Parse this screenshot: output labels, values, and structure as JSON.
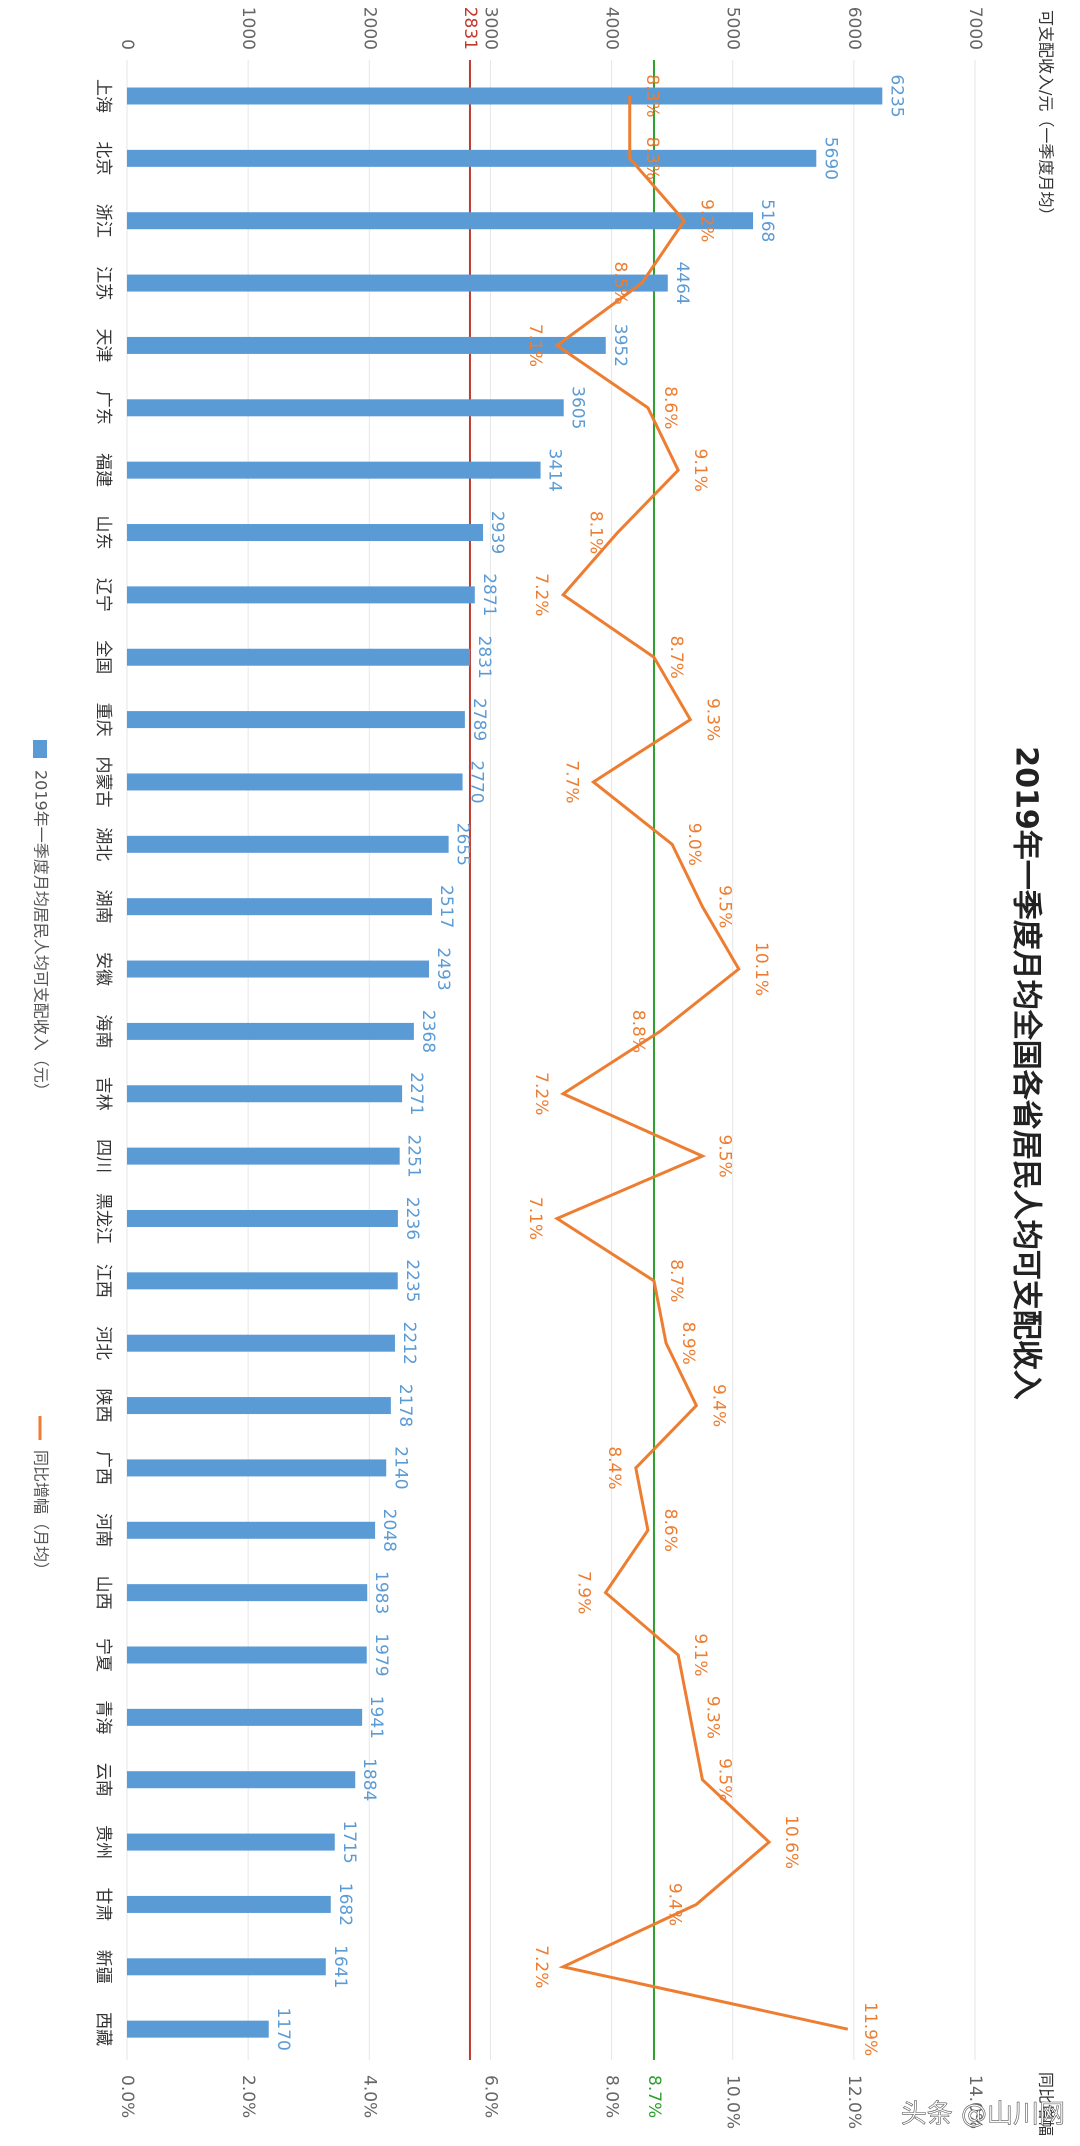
{
  "chart_data": {
    "type": "bar-line",
    "title": "2019年一季度月均全国各省居民人均可支配收入",
    "y_label": "可支配收入/元（一季度月均）",
    "y2_label": "同比增幅",
    "categories": [
      "上海",
      "北京",
      "浙江",
      "江苏",
      "天津",
      "广东",
      "福建",
      "山东",
      "辽宁",
      "全国",
      "重庆",
      "内蒙古",
      "湖北",
      "湖南",
      "安徽",
      "海南",
      "吉林",
      "四川",
      "黑龙江",
      "江西",
      "河北",
      "陕西",
      "广西",
      "河南",
      "山西",
      "宁夏",
      "青海",
      "云南",
      "贵州",
      "甘肃",
      "新疆",
      "西藏"
    ],
    "series": [
      {
        "name": "2019年一季度月均居民人均可支配收入（元）",
        "type": "bar",
        "color": "#5b9bd5",
        "values": [
          6235,
          5690,
          5168,
          4464,
          3952,
          3605,
          3414,
          2939,
          2871,
          2831,
          2789,
          2770,
          2655,
          2517,
          2493,
          2368,
          2271,
          2251,
          2236,
          2235,
          2212,
          2178,
          2140,
          2048,
          1983,
          1979,
          1941,
          1884,
          1715,
          1682,
          1641,
          1170
        ]
      },
      {
        "name": "同比增幅（月均）",
        "type": "line",
        "axis": "y2",
        "color": "#ed7d31",
        "values": [
          8.3,
          8.3,
          9.2,
          8.5,
          7.1,
          8.6,
          9.1,
          8.1,
          7.2,
          8.7,
          9.3,
          7.7,
          9.0,
          9.5,
          10.1,
          8.8,
          7.2,
          9.5,
          7.1,
          8.7,
          8.9,
          9.4,
          8.4,
          8.6,
          7.9,
          9.1,
          9.3,
          9.5,
          10.6,
          9.4,
          7.2,
          11.9
        ],
        "value_labels": [
          "8.3%",
          "8.3%",
          "9.2%",
          "8.5%",
          "7.1%",
          "8.6%",
          "9.1%",
          "8.1%",
          "7.2%",
          "8.7%",
          "9.3%",
          "7.7%",
          "9.0%",
          "9.5%",
          "10.1%",
          "8.8%",
          "7.2%",
          "9.5%",
          "7.1%",
          "8.7%",
          "8.9%",
          "9.4%",
          "8.4%",
          "8.6%",
          "7.9%",
          "9.1%",
          "9.3%",
          "9.5%",
          "10.6%",
          "9.4%",
          "7.2%",
          "11.9%"
        ]
      }
    ],
    "ylim": [
      0,
      7000
    ],
    "yticks": [
      0,
      1000,
      2000,
      3000,
      4000,
      5000,
      6000,
      7000
    ],
    "y2lim": [
      0,
      14
    ],
    "y2ticks": [
      {
        "value": 0,
        "label": "0.0%"
      },
      {
        "value": 2,
        "label": "2.0%"
      },
      {
        "value": 4,
        "label": "4.0%"
      },
      {
        "value": 6,
        "label": "6.0%"
      },
      {
        "value": 8,
        "label": "8.0%"
      },
      {
        "value": 10,
        "label": "10.0%"
      },
      {
        "value": 12,
        "label": "12.0%"
      },
      {
        "value": 14,
        "label": "14.0%"
      }
    ],
    "reference_lines": [
      {
        "value": 2831,
        "axis": "y",
        "color": "#c0392b"
      },
      {
        "value": 8.7,
        "label": "8.7%",
        "axis": "y2",
        "color": "#2ca02c"
      }
    ],
    "grid": true,
    "watermark": "头条 @山川网"
  }
}
